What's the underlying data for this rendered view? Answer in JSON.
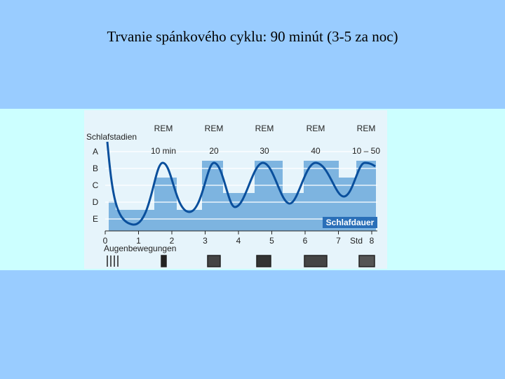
{
  "title": "Trvanie spánkového cyklu: 90 minút (3-5 za noc)",
  "figure": {
    "y_label": "Schlafstadien",
    "stages": [
      "A",
      "B",
      "C",
      "D",
      "E"
    ],
    "rem": [
      {
        "label": "REM",
        "duration": "10 min"
      },
      {
        "label": "REM",
        "duration": "20"
      },
      {
        "label": "REM",
        "duration": "30"
      },
      {
        "label": "REM",
        "duration": "40"
      },
      {
        "label": "REM",
        "duration": "10 – 50"
      }
    ],
    "x_ticks": [
      "0",
      "1",
      "2",
      "3",
      "4",
      "5",
      "6",
      "7",
      "8"
    ],
    "x_unit": "Std",
    "x_label": "Schlafdauer",
    "eye_label": "Augenbewegungen"
  }
}
